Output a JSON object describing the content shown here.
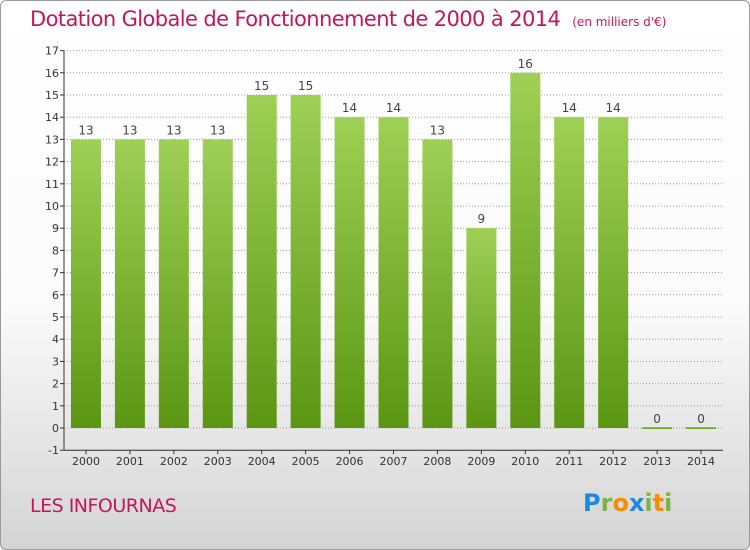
{
  "title": "Dotation Globale de Fonctionnement de 2000 à 2014",
  "unit_note": "(en milliers d'€)",
  "location": "LES INFOURNAS",
  "logo": {
    "text": "Proxiti",
    "letters": [
      {
        "ch": "P",
        "color": "#1e88e5"
      },
      {
        "ch": "r",
        "color": "#7cb342"
      },
      {
        "ch": "o",
        "color": "#fb8c00"
      },
      {
        "ch": "x",
        "color": "#1e88e5"
      },
      {
        "ch": "i",
        "color": "#7cb342"
      },
      {
        "ch": "t",
        "color": "#fb8c00"
      },
      {
        "ch": "i",
        "color": "#7cb342"
      }
    ]
  },
  "colors": {
    "title": "#c2185b",
    "bar_top": "#9ed055",
    "bar_bottom": "#5b9613",
    "grid": "#999999",
    "axis": "#333333"
  },
  "chart_data": {
    "type": "bar",
    "categories": [
      "2000",
      "2001",
      "2002",
      "2003",
      "2004",
      "2005",
      "2006",
      "2007",
      "2008",
      "2009",
      "2010",
      "2011",
      "2012",
      "2013",
      "2014"
    ],
    "values": [
      13,
      13,
      13,
      13,
      15,
      15,
      14,
      14,
      13,
      9,
      16,
      14,
      14,
      0,
      0
    ],
    "ylim": [
      -1,
      17
    ],
    "yticks": [
      "-1",
      "0",
      "1",
      "2",
      "3",
      "4",
      "5",
      "6",
      "7",
      "8",
      "9",
      "10",
      "11",
      "12",
      "13",
      "14",
      "15",
      "16",
      "17"
    ],
    "grid": true,
    "data_labels": true
  }
}
